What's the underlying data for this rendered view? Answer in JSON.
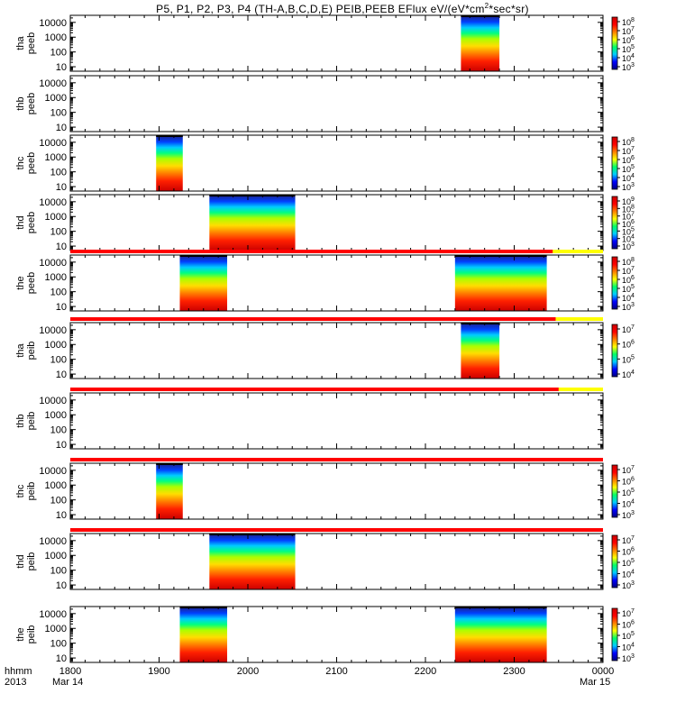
{
  "title_main": "P5, P1, P2, P3, P4 (TH-A,B,C,D,E) PEIB,PEEB EFlux eV/(eV*cm",
  "title_sup": "2",
  "title_tail": "*sec*sr)",
  "x_axis": {
    "row1_label": "hhmm",
    "row2_label": "2013",
    "ticks": [
      "1800",
      "1900",
      "2000",
      "2100",
      "2200",
      "2300",
      "0000"
    ],
    "start_date": "Mar 14",
    "end_date": "Mar 15"
  },
  "y_tick_labels": [
    "10",
    "100",
    "1000",
    "10000"
  ],
  "colorscale": {
    "stops": [
      "#000080",
      "#0000ff",
      "#00ccff",
      "#00ff66",
      "#ffff00",
      "#ff8000",
      "#ff0000",
      "#cc0000"
    ],
    "status_red": "#ff0000",
    "status_yellow": "#ffff00"
  },
  "chart_data": {
    "type": "heatmap",
    "x_range_hhmm": [
      1800,
      2400
    ],
    "y_scale": "log",
    "y_range_eV": [
      5,
      30000
    ],
    "panels": [
      {
        "label_top": "tha",
        "label_bottom": "peeb",
        "cbar_labels": [
          "10^8",
          "10^7",
          "10^6",
          "10^5",
          "10^4",
          "10^3"
        ],
        "data_blocks": [
          {
            "start_hhmm": 2224,
            "end_hhmm": 2250
          }
        ]
      },
      {
        "label_top": "thb",
        "label_bottom": "peeb",
        "cbar_labels": [],
        "data_blocks": []
      },
      {
        "label_top": "thc",
        "label_bottom": "peeb",
        "cbar_labels": [
          "10^8",
          "10^7",
          "10^6",
          "10^5",
          "10^4",
          "10^3"
        ],
        "data_blocks": [
          {
            "start_hhmm": 1858,
            "end_hhmm": 1876
          }
        ]
      },
      {
        "label_top": "thd",
        "label_bottom": "peeb",
        "cbar_labels": [
          "10^9",
          "10^8",
          "10^7",
          "10^6",
          "10^5",
          "10^4",
          "10^3"
        ],
        "data_blocks": [
          {
            "start_hhmm": 1934,
            "end_hhmm": 1992
          }
        ]
      },
      {
        "label_top": "the",
        "label_bottom": "peeb",
        "cbar_labels": [
          "10^8",
          "10^7",
          "10^6",
          "10^5",
          "10^4",
          "10^3"
        ],
        "data_blocks": [
          {
            "start_hhmm": 1914,
            "end_hhmm": 1946
          },
          {
            "start_hhmm": 2220,
            "end_hhmm": 2282
          }
        ],
        "status_bar": {
          "red_until_hhmm": 2326
        }
      },
      {
        "label_top": "tha",
        "label_bottom": "peib",
        "cbar_labels": [
          "10^7",
          "10^6",
          "10^5",
          "10^4"
        ],
        "data_blocks": [
          {
            "start_hhmm": 2224,
            "end_hhmm": 2250
          }
        ],
        "status_bar": {
          "red_until_hhmm": 2288
        }
      },
      {
        "label_top": "thb",
        "label_bottom": "peib",
        "cbar_labels": [],
        "data_blocks": [],
        "status_bar": {
          "red_until_hhmm": 2290
        }
      },
      {
        "label_top": "thc",
        "label_bottom": "peib",
        "cbar_labels": [
          "10^7",
          "10^6",
          "10^5",
          "10^4",
          "10^3"
        ],
        "data_blocks": [
          {
            "start_hhmm": 1858,
            "end_hhmm": 1876
          }
        ],
        "status_bar": {
          "red_until_hhmm": 2400
        }
      },
      {
        "label_top": "thd",
        "label_bottom": "peib",
        "cbar_labels": [
          "10^7",
          "10^6",
          "10^5",
          "10^4",
          "10^3"
        ],
        "data_blocks": [
          {
            "start_hhmm": 1934,
            "end_hhmm": 1992
          }
        ],
        "status_bar": {
          "red_until_hhmm": 2400
        }
      },
      {
        "label_top": "the",
        "label_bottom": "peib",
        "cbar_labels": [
          "10^7",
          "10^6",
          "10^5",
          "10^4",
          "10^3"
        ],
        "data_blocks": [
          {
            "start_hhmm": 1914,
            "end_hhmm": 1946
          },
          {
            "start_hhmm": 2220,
            "end_hhmm": 2282
          }
        ]
      }
    ]
  }
}
